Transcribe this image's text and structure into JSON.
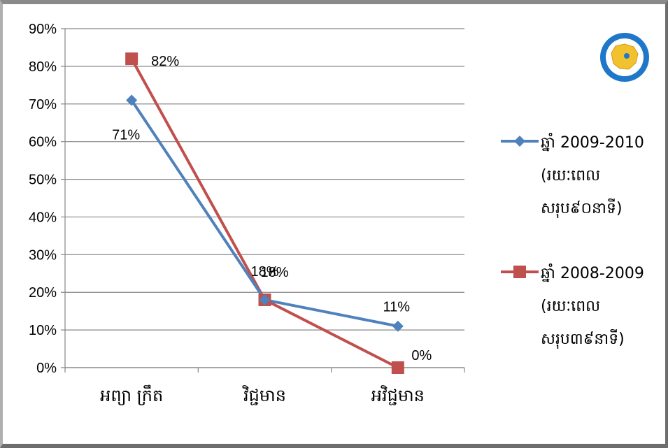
{
  "chart_data": {
    "type": "line",
    "categories": [
      "អព្យា ក្រឹត",
      "វិជ្ជមាន",
      "អវិជ្ជមាន"
    ],
    "ylim": [
      0,
      90
    ],
    "yticks": [
      "0%",
      "10%",
      "20%",
      "30%",
      "40%",
      "50%",
      "60%",
      "70%",
      "80%",
      "90%"
    ],
    "grid": true,
    "legend": "right",
    "series": [
      {
        "name_lines": [
          "ឆ្នាំ 2009-2010",
          "(រយៈពេល",
          "សរុប៩០នាទី)"
        ],
        "values": [
          71,
          18,
          11
        ],
        "labels": [
          "71%",
          "18%",
          "11%"
        ],
        "color": "#4f81bd",
        "marker": "diamond"
      },
      {
        "name_lines": [
          "ឆ្នាំ 2008-2009",
          "(រយៈពេល",
          "សរុប៣៩នាទី)"
        ],
        "values": [
          82,
          18,
          0
        ],
        "labels": [
          "82%",
          "18%",
          "0%"
        ],
        "color": "#c0504d",
        "marker": "square"
      }
    ]
  },
  "logo": {
    "name": "ministry-seal",
    "ring_color": "#1f77c9",
    "map_color": "#f2c22e"
  }
}
